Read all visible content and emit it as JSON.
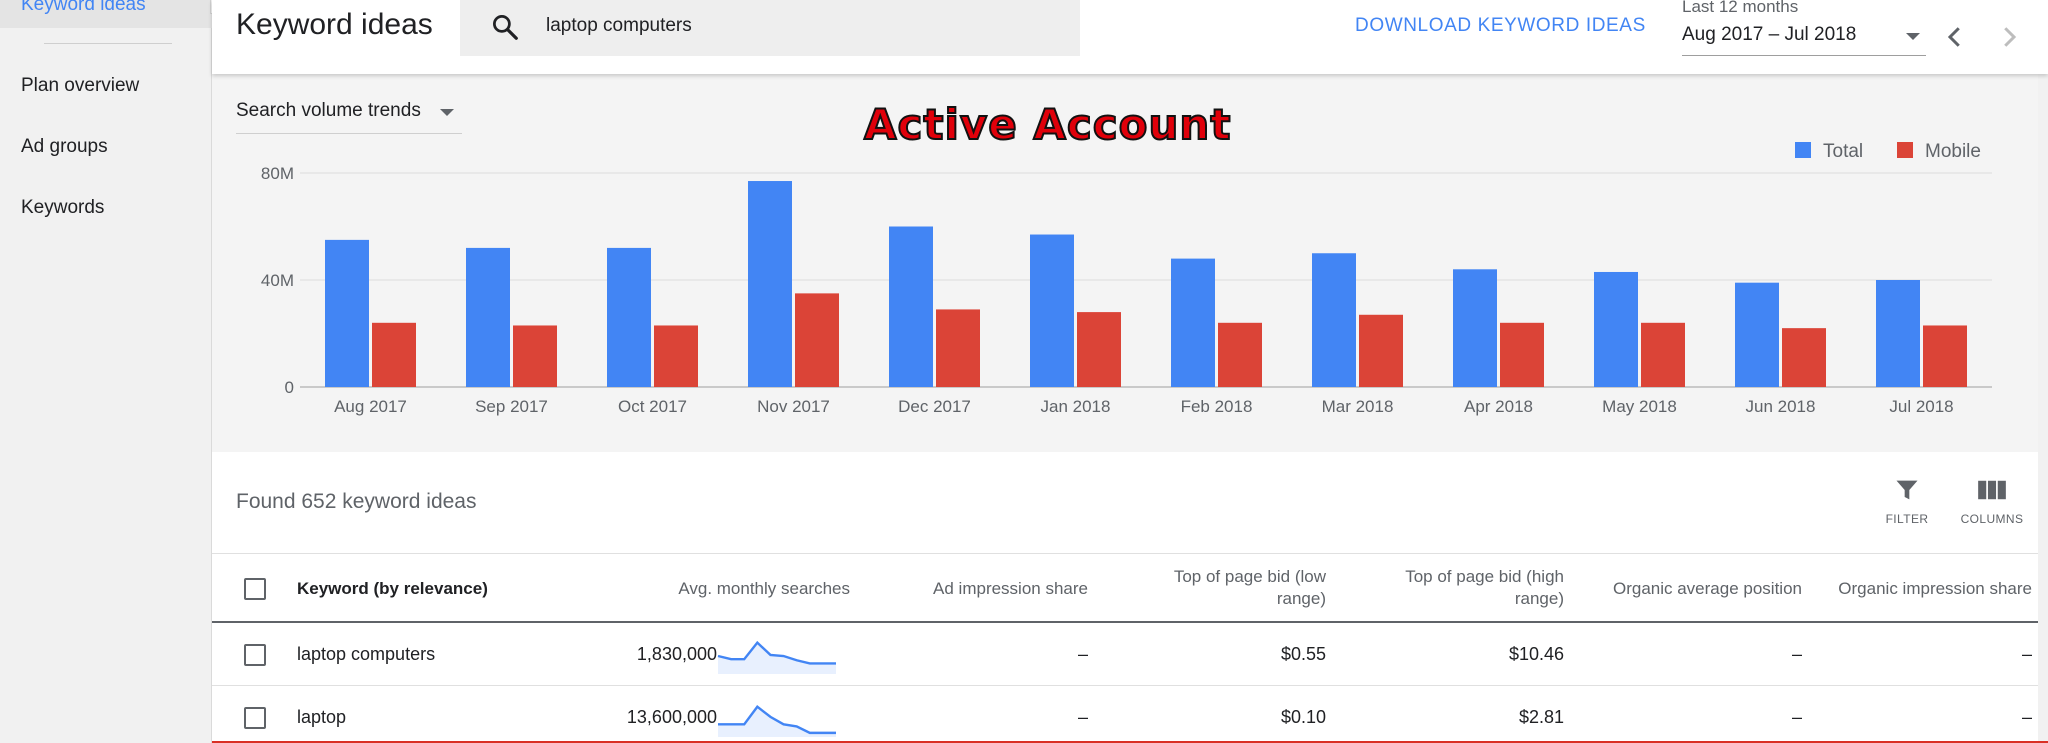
{
  "sidebar": {
    "active_item": "Keyword ideas",
    "items": [
      "Plan overview",
      "Ad groups",
      "Keywords"
    ]
  },
  "header": {
    "title": "Keyword ideas",
    "search_value": "laptop computers",
    "download_label": "DOWNLOAD KEYWORD IDEAS",
    "range_caption": "Last 12 months",
    "range_value": "Aug 2017 – Jul 2018"
  },
  "chart_panel": {
    "trend_selector": "Search volume trends",
    "overlay_title": "Active Account"
  },
  "chart_data": {
    "type": "bar",
    "title": "",
    "xlabel": "",
    "ylabel": "",
    "ylim": [
      0,
      80
    ],
    "y_ticks": [
      "0",
      "40M",
      "80M"
    ],
    "legend_position": "top-right",
    "categories": [
      "Aug 2017",
      "Sep 2017",
      "Oct 2017",
      "Nov 2017",
      "Dec 2017",
      "Jan 2018",
      "Feb 2018",
      "Mar 2018",
      "Apr 2018",
      "May 2018",
      "Jun 2018",
      "Jul 2018"
    ],
    "series": [
      {
        "name": "Total",
        "color": "#4285f4",
        "values": [
          55,
          52,
          52,
          77,
          60,
          57,
          48,
          50,
          44,
          43,
          39,
          40
        ]
      },
      {
        "name": "Mobile",
        "color": "#db4437",
        "values": [
          24,
          23,
          23,
          35,
          29,
          28,
          24,
          27,
          24,
          24,
          22,
          23
        ]
      }
    ]
  },
  "results": {
    "found_text": "Found 652 keyword ideas",
    "filter_label": "FILTER",
    "columns_label": "COLUMNS"
  },
  "table": {
    "columns": {
      "keyword": "Keyword (by relevance)",
      "searches": "Avg. monthly searches",
      "ad_share": "Ad impression share",
      "bid_low_1": "Top of page bid (low",
      "bid_low_2": "range)",
      "bid_high_1": "Top of page bid (high",
      "bid_high_2": "range)",
      "org_pos": "Organic average position",
      "org_share": "Organic impression share"
    },
    "rows": [
      {
        "keyword": "laptop computers",
        "searches": "1,830,000",
        "ad_share": "–",
        "bid_low": "$0.55",
        "bid_high": "$10.46",
        "org_pos": "–",
        "org_share": "–",
        "trend": [
          6.0,
          5.4,
          5.4,
          8.5,
          6.2,
          6.0,
          5.2,
          4.6,
          4.6,
          4.6
        ]
      },
      {
        "keyword": "laptop",
        "searches": "13,600,000",
        "ad_share": "–",
        "bid_low": "$0.10",
        "bid_high": "$2.81",
        "org_pos": "–",
        "org_share": "–",
        "trend": [
          5.0,
          5.0,
          5.0,
          8.3,
          6.4,
          5.0,
          4.6,
          3.4,
          3.4,
          3.4
        ]
      }
    ]
  },
  "colors": {
    "accent": "#4285f4",
    "total_series": "#4285f4",
    "mobile_series": "#db4437",
    "overlay_title": "#e0000a"
  }
}
